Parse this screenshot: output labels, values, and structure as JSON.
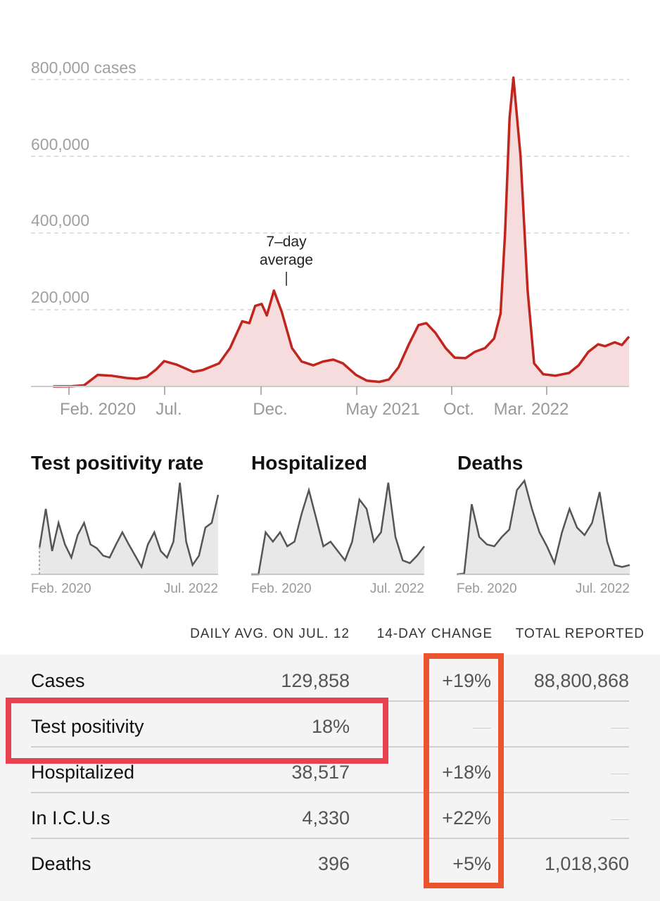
{
  "main_chart": {
    "y_ticks": [
      "800,000 cases",
      "600,000",
      "400,000",
      "200,000"
    ],
    "x_ticks": [
      "Feb. 2020",
      "Jul.",
      "Dec.",
      "May 2021",
      "Oct.",
      "Mar. 2022"
    ],
    "annotation_line1": "7–day",
    "annotation_line2": "average",
    "line_color": "#c0261e",
    "fill_color": "#f6dcdc"
  },
  "chart_data": [
    {
      "type": "area",
      "ylim": [
        0,
        800000
      ],
      "y_ticks": [
        0,
        200000,
        400000,
        600000,
        800000
      ],
      "x_ticks": [
        "Feb. 2020",
        "Jul.",
        "Dec.",
        "May 2021",
        "Oct.",
        "Mar. 2022"
      ],
      "x": [
        "2020-02-01",
        "2020-03-01",
        "2020-03-20",
        "2020-04-10",
        "2020-05-01",
        "2020-05-25",
        "2020-06-10",
        "2020-06-25",
        "2020-07-10",
        "2020-07-22",
        "2020-08-10",
        "2020-09-05",
        "2020-09-20",
        "2020-10-15",
        "2020-11-01",
        "2020-11-20",
        "2020-12-01",
        "2020-12-10",
        "2020-12-20",
        "2020-12-28",
        "2021-01-08",
        "2021-01-20",
        "2021-02-05",
        "2021-02-20",
        "2021-03-10",
        "2021-03-25",
        "2021-04-10",
        "2021-04-25",
        "2021-05-15",
        "2021-06-01",
        "2021-06-20",
        "2021-07-05",
        "2021-07-20",
        "2021-08-05",
        "2021-08-20",
        "2021-09-01",
        "2021-09-15",
        "2021-10-01",
        "2021-10-15",
        "2021-11-01",
        "2021-11-15",
        "2021-12-01",
        "2021-12-15",
        "2021-12-25",
        "2022-01-01",
        "2022-01-08",
        "2022-01-14",
        "2022-01-25",
        "2022-02-05",
        "2022-02-15",
        "2022-03-01",
        "2022-03-20",
        "2022-04-10",
        "2022-04-25",
        "2022-05-10",
        "2022-05-25",
        "2022-06-05",
        "2022-06-20",
        "2022-07-01",
        "2022-07-12"
      ],
      "values": [
        0,
        500,
        3000,
        30000,
        28000,
        22000,
        20000,
        25000,
        45000,
        66000,
        57000,
        38000,
        43000,
        60000,
        100000,
        170000,
        165000,
        210000,
        215000,
        185000,
        250000,
        195000,
        100000,
        65000,
        55000,
        65000,
        70000,
        60000,
        30000,
        15000,
        12000,
        18000,
        50000,
        110000,
        160000,
        165000,
        140000,
        100000,
        75000,
        74000,
        90000,
        100000,
        125000,
        190000,
        400000,
        700000,
        805000,
        600000,
        250000,
        60000,
        32000,
        28000,
        35000,
        55000,
        90000,
        110000,
        105000,
        115000,
        108000,
        129858
      ],
      "annotation": "7–day average"
    },
    {
      "type": "area",
      "title": "Test positivity rate",
      "x_ticks": [
        "Feb. 2020",
        "Jul. 2022"
      ],
      "values": [
        0.28,
        0.7,
        0.25,
        0.55,
        0.32,
        0.18,
        0.42,
        0.55,
        0.32,
        0.28,
        0.2,
        0.18,
        0.32,
        0.45,
        0.32,
        0.2,
        0.08,
        0.32,
        0.45,
        0.25,
        0.18,
        0.35,
        0.98,
        0.35,
        0.1,
        0.2,
        0.5,
        0.55,
        0.85
      ]
    },
    {
      "type": "area",
      "title": "Hospitalized",
      "x_ticks": [
        "Feb. 2020",
        "Jul. 2022"
      ],
      "values": [
        0,
        0.0,
        0.45,
        0.35,
        0.45,
        0.3,
        0.35,
        0.65,
        0.9,
        0.6,
        0.3,
        0.35,
        0.25,
        0.15,
        0.35,
        0.8,
        0.7,
        0.35,
        0.45,
        0.98,
        0.4,
        0.15,
        0.12,
        0.2,
        0.3
      ]
    },
    {
      "type": "area",
      "title": "Deaths",
      "x_ticks": [
        "Feb. 2020",
        "Jul. 2022"
      ],
      "values": [
        0,
        0.01,
        0.75,
        0.4,
        0.32,
        0.3,
        0.4,
        0.48,
        0.9,
        1.0,
        0.7,
        0.45,
        0.3,
        0.12,
        0.45,
        0.7,
        0.5,
        0.42,
        0.55,
        0.88,
        0.35,
        0.1,
        0.08,
        0.1
      ]
    }
  ],
  "small_charts": {
    "positivity": {
      "title": "Test positivity rate",
      "x_start": "Feb. 2020",
      "x_end": "Jul. 2022"
    },
    "hospitalized": {
      "title": "Hospitalized",
      "x_start": "Feb. 2020",
      "x_end": "Jul. 2022"
    },
    "deaths": {
      "title": "Deaths",
      "x_start": "Feb. 2020",
      "x_end": "Jul. 2022"
    }
  },
  "table": {
    "headers": [
      "DAILY AVG. ON JUL. 12",
      "14-DAY CHANGE",
      "TOTAL REPORTED"
    ],
    "rows": [
      {
        "label": "Cases",
        "avg": "129,858",
        "change": "+19%",
        "total": "88,800,868"
      },
      {
        "label": "Test positivity",
        "avg": "18%",
        "change": "",
        "total": ""
      },
      {
        "label": "Hospitalized",
        "avg": "38,517",
        "change": "+18%",
        "total": ""
      },
      {
        "label": "In I.C.U.s",
        "avg": "4,330",
        "change": "+22%",
        "total": ""
      },
      {
        "label": "Deaths",
        "avg": "396",
        "change": "+5%",
        "total": "1,018,360"
      }
    ],
    "highlight_colors": [
      "#e8414f",
      "#ec5430"
    ]
  }
}
